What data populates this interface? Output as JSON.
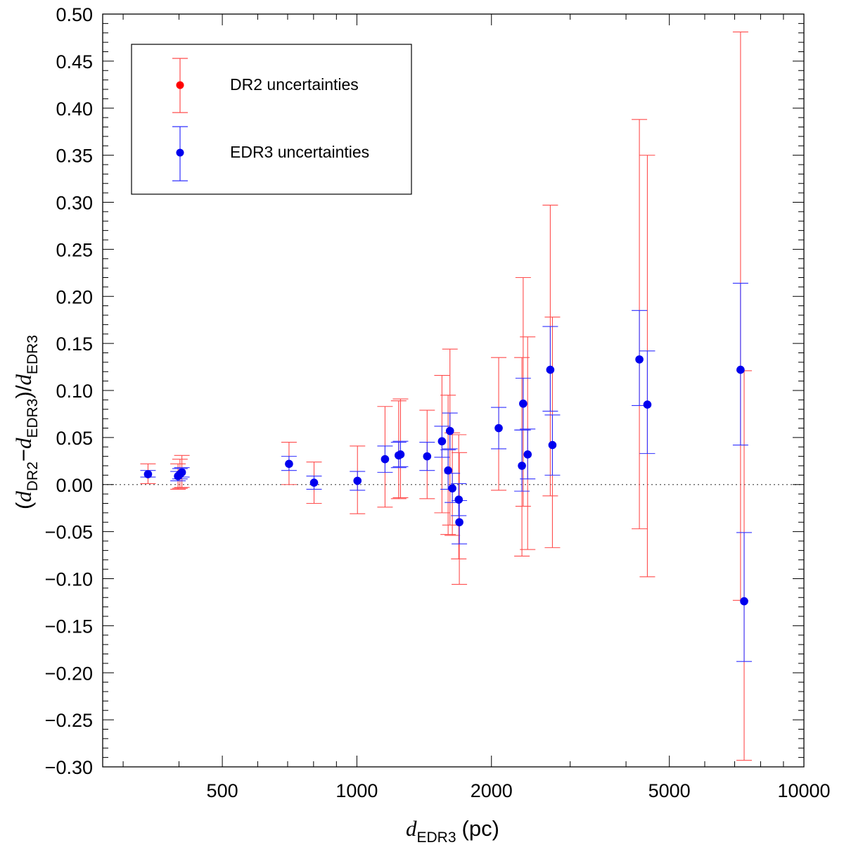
{
  "chart_data": {
    "type": "scatter",
    "x_scale": "log",
    "xlim": [
      270,
      10000
    ],
    "ylim": [
      -0.3,
      0.5
    ],
    "x_ticks_major": [
      500,
      1000,
      2000,
      5000,
      10000
    ],
    "x_tick_labels": [
      "500",
      "1000",
      "2000",
      "5000",
      "10000"
    ],
    "y_tick_labels": [
      "-0.30",
      "-0.25",
      "-0.20",
      "-0.15",
      "-0.10",
      "-0.05",
      "0.00",
      "0.05",
      "0.10",
      "0.15",
      "0.20",
      "0.25",
      "0.30",
      "0.35",
      "0.40",
      "0.45",
      "0.50"
    ],
    "xlabel": {
      "var": "d",
      "sub": "EDR3",
      "unit": "(pc)"
    },
    "ylabel": {
      "open": "(",
      "v1": "d",
      "s1": "DR2",
      "minus": "−",
      "v2": "d",
      "s2": "EDR3",
      "close": ")/",
      "v3": "d",
      "s3": "EDR3"
    },
    "reference_line": {
      "y": 0.0,
      "style": "dotted"
    },
    "legend": {
      "position": "top-left",
      "entries": [
        {
          "label": "DR2 uncertainties",
          "color": "#ff0000"
        },
        {
          "label": "EDR3 uncertainties",
          "color": "#0000ff"
        }
      ]
    },
    "colors": {
      "dr2_bar": "#ff4d4d",
      "edr3_bar": "#3030ff",
      "point": "#0000ee",
      "dr2_marker": "#ff0000"
    },
    "points": [
      {
        "x": 341,
        "y": 0.011,
        "dr2": [
          0.001,
          0.022
        ],
        "edr3": [
          0.008,
          0.015
        ]
      },
      {
        "x": 398,
        "y": 0.009,
        "dr2": [
          -0.005,
          0.022
        ],
        "edr3": [
          0.004,
          0.014
        ]
      },
      {
        "x": 402,
        "y": 0.011,
        "dr2": [
          -0.004,
          0.027
        ],
        "edr3": [
          0.006,
          0.017
        ]
      },
      {
        "x": 406,
        "y": 0.013,
        "dr2": [
          -0.003,
          0.031
        ],
        "edr3": [
          0.008,
          0.018
        ]
      },
      {
        "x": 705,
        "y": 0.022,
        "dr2": [
          0.0,
          0.045
        ],
        "edr3": [
          0.015,
          0.03
        ]
      },
      {
        "x": 802,
        "y": 0.002,
        "dr2": [
          -0.02,
          0.024
        ],
        "edr3": [
          -0.005,
          0.009
        ]
      },
      {
        "x": 1003,
        "y": 0.004,
        "dr2": [
          -0.031,
          0.041
        ],
        "edr3": [
          -0.006,
          0.014
        ]
      },
      {
        "x": 1156,
        "y": 0.027,
        "dr2": [
          -0.024,
          0.083
        ],
        "edr3": [
          0.013,
          0.041
        ]
      },
      {
        "x": 1240,
        "y": 0.031,
        "dr2": [
          -0.015,
          0.089
        ],
        "edr3": [
          0.018,
          0.045
        ]
      },
      {
        "x": 1252,
        "y": 0.032,
        "dr2": [
          -0.014,
          0.091
        ],
        "edr3": [
          0.019,
          0.046
        ]
      },
      {
        "x": 1436,
        "y": 0.03,
        "dr2": [
          -0.015,
          0.079
        ],
        "edr3": [
          0.015,
          0.045
        ]
      },
      {
        "x": 1550,
        "y": 0.046,
        "dr2": [
          -0.03,
          0.116
        ],
        "edr3": [
          0.029,
          0.062
        ]
      },
      {
        "x": 1600,
        "y": 0.015,
        "dr2": [
          -0.053,
          0.095
        ],
        "edr3": [
          -0.005,
          0.037
        ]
      },
      {
        "x": 1615,
        "y": 0.057,
        "dr2": [
          -0.043,
          0.144
        ],
        "edr3": [
          0.038,
          0.076
        ]
      },
      {
        "x": 1635,
        "y": -0.004,
        "dr2": [
          -0.054,
          0.055
        ],
        "edr3": [
          -0.019,
          0.012
        ]
      },
      {
        "x": 1690,
        "y": -0.016,
        "dr2": [
          -0.079,
          0.053
        ],
        "edr3": [
          -0.033,
          0.001
        ]
      },
      {
        "x": 1695,
        "y": -0.04,
        "dr2": [
          -0.106,
          0.034
        ],
        "edr3": [
          -0.063,
          -0.017
        ]
      },
      {
        "x": 2076,
        "y": 0.06,
        "dr2": [
          -0.006,
          0.135
        ],
        "edr3": [
          0.038,
          0.082
        ]
      },
      {
        "x": 2340,
        "y": 0.02,
        "dr2": [
          -0.076,
          0.135
        ],
        "edr3": [
          -0.007,
          0.058
        ]
      },
      {
        "x": 2355,
        "y": 0.086,
        "dr2": [
          -0.023,
          0.22
        ],
        "edr3": [
          0.058,
          0.113
        ]
      },
      {
        "x": 2410,
        "y": 0.032,
        "dr2": [
          -0.069,
          0.157
        ],
        "edr3": [
          0.006,
          0.059
        ]
      },
      {
        "x": 2708,
        "y": 0.122,
        "dr2": [
          -0.012,
          0.297
        ],
        "edr3": [
          0.078,
          0.168
        ]
      },
      {
        "x": 2738,
        "y": 0.042,
        "dr2": [
          -0.067,
          0.178
        ],
        "edr3": [
          0.01,
          0.074
        ]
      },
      {
        "x": 4285,
        "y": 0.133,
        "dr2": [
          -0.047,
          0.388
        ],
        "edr3": [
          0.084,
          0.185
        ]
      },
      {
        "x": 4465,
        "y": 0.085,
        "dr2": [
          -0.098,
          0.35
        ],
        "edr3": [
          0.033,
          0.142
        ]
      },
      {
        "x": 7215,
        "y": 0.122,
        "dr2": [
          -0.123,
          0.481
        ],
        "edr3": [
          0.042,
          0.214
        ]
      },
      {
        "x": 7350,
        "y": -0.124,
        "dr2": [
          -0.293,
          0.121
        ],
        "edr3": [
          -0.188,
          -0.051
        ]
      }
    ]
  }
}
